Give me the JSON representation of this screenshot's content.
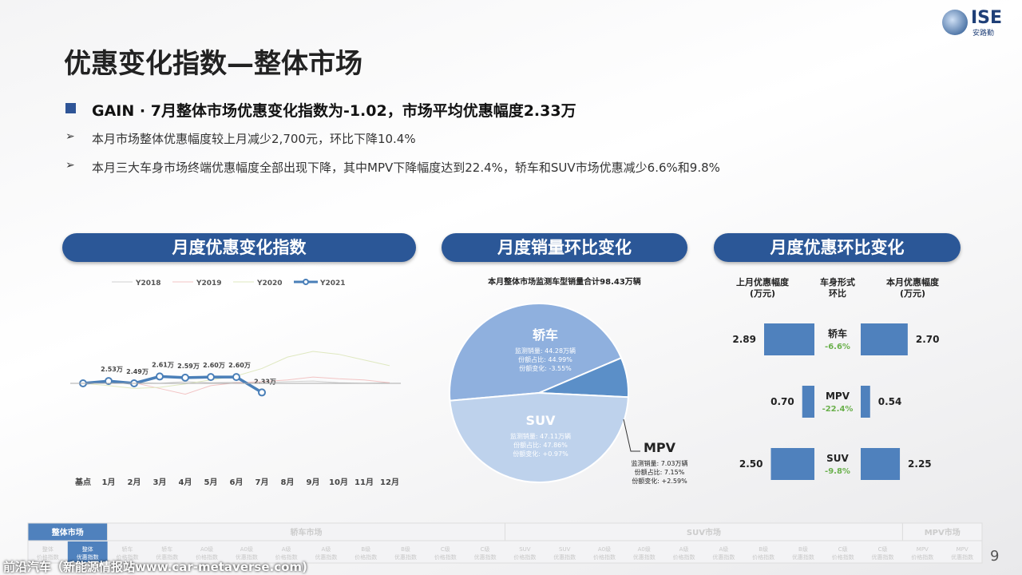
{
  "logo": {
    "mark": "ISE",
    "name": "安路勤"
  },
  "title": "优惠变化指数—整体市场",
  "headline": "GAIN · 7月整体市场优惠变化指数为-1.02，市场平均优惠幅度2.33万",
  "points": [
    "本月市场整体优惠幅度较上月减少2,700元，环比下降10.4%",
    "本月三大车身市场终端优惠幅度全部出现下降，其中MPV下降幅度达到22.4%，轿车和SUV市场优惠减少6.6%和9.8%"
  ],
  "chart_data": [
    {
      "type": "line",
      "title": "月度优惠变化指数",
      "categories": [
        "基点",
        "1月",
        "2月",
        "3月",
        "4月",
        "5月",
        "6月",
        "7月",
        "8月",
        "9月",
        "10月",
        "11月",
        "12月"
      ],
      "series": [
        {
          "name": "Y2018",
          "color": "#d0d0d0",
          "values": [
            2.49,
            2.5,
            2.5,
            2.49,
            2.52,
            2.5,
            2.51,
            2.5,
            2.52,
            2.53,
            2.5,
            2.49,
            2.5
          ]
        },
        {
          "name": "Y2019",
          "color": "#f2c4c4",
          "values": [
            2.49,
            2.52,
            2.5,
            2.4,
            2.3,
            2.45,
            2.5,
            2.52,
            2.55,
            2.6,
            2.57,
            2.55,
            2.5
          ]
        },
        {
          "name": "Y2020",
          "color": "#dfe8c0",
          "values": [
            2.49,
            2.45,
            2.4,
            2.42,
            2.48,
            2.55,
            2.62,
            2.75,
            2.95,
            3.05,
            3.0,
            2.9,
            2.8
          ]
        },
        {
          "name": "Y2021",
          "color": "#4a7fb8",
          "values": [
            2.49,
            2.53,
            2.49,
            2.61,
            2.59,
            2.6,
            2.6,
            2.33,
            null,
            null,
            null,
            null,
            null
          ],
          "value_labels": [
            null,
            "2.53万",
            "2.49万",
            "2.61万",
            "2.59万",
            "2.60万",
            "2.60万",
            "2.33万",
            null,
            null,
            null,
            null,
            null
          ]
        }
      ]
    },
    {
      "type": "pie",
      "title": "月度销量环比变化",
      "subtitle": "本月整体市场监测车型销量合计98.43万辆",
      "categories": [
        "轿车",
        "SUV",
        "MPV"
      ],
      "values": [
        44.99,
        47.86,
        7.15
      ],
      "colors": [
        "#8fb0de",
        "#bed2ec",
        "#5b8fc8"
      ],
      "details": [
        [
          "监测销量: 44.28万辆",
          "份额占比: 44.99%",
          "份额变化: -3.55%"
        ],
        [
          "监测销量: 47.11万辆",
          "份额占比: 47.86%",
          "份额变化: +0.97%"
        ],
        [
          "监测销量: 7.03万辆",
          "份额占比: 7.15%",
          "份额变化: +2.59%"
        ]
      ]
    },
    {
      "type": "butterfly",
      "title": "月度优惠环比变化",
      "column_labels": [
        [
          "上月优惠幅度",
          "(万元)"
        ],
        [
          "车身形式",
          "环比"
        ],
        [
          "本月优惠幅度",
          "(万元)"
        ]
      ],
      "categories": [
        "轿车",
        "MPV",
        "SUV"
      ],
      "color": "#4f81bd",
      "previous": [
        2.89,
        0.7,
        2.5
      ],
      "previous_labels": [
        "2.89",
        "0.70",
        "2.50"
      ],
      "current": [
        2.7,
        0.54,
        2.25
      ],
      "current_labels": [
        "2.70",
        "0.54",
        "2.25"
      ],
      "change_labels": [
        "-6.6%",
        "-22.4%",
        "-9.8%"
      ]
    }
  ],
  "nav": [
    {
      "label": "整体市场",
      "items": [
        [
          "整体",
          "价格指数"
        ],
        [
          "整体",
          "优惠指数"
        ]
      ]
    },
    {
      "label": "轿车市场",
      "items": [
        [
          "轿车",
          "价格指数"
        ],
        [
          "轿车",
          "优惠指数"
        ],
        [
          "A0级",
          "价格指数"
        ],
        [
          "A0级",
          "优惠指数"
        ],
        [
          "A级",
          "价格指数"
        ],
        [
          "A级",
          "优惠指数"
        ],
        [
          "B级",
          "价格指数"
        ],
        [
          "B级",
          "优惠指数"
        ],
        [
          "C级",
          "价格指数"
        ],
        [
          "C级",
          "优惠指数"
        ]
      ]
    },
    {
      "label": "SUV市场",
      "items": [
        [
          "SUV",
          "价格指数"
        ],
        [
          "SUV",
          "优惠指数"
        ],
        [
          "A0级",
          "价格指数"
        ],
        [
          "A0级",
          "优惠指数"
        ],
        [
          "A级",
          "价格指数"
        ],
        [
          "A级",
          "优惠指数"
        ],
        [
          "B级",
          "价格指数"
        ],
        [
          "B级",
          "优惠指数"
        ],
        [
          "C级",
          "价格指数"
        ],
        [
          "C级",
          "优惠指数"
        ]
      ]
    },
    {
      "label": "MPV市场",
      "items": [
        [
          "MPV",
          "价格指数"
        ],
        [
          "MPV",
          "优惠指数"
        ]
      ]
    }
  ],
  "page": "9",
  "watermark": "前沿汽车（新能源情报站www.car-metaverse.com)"
}
